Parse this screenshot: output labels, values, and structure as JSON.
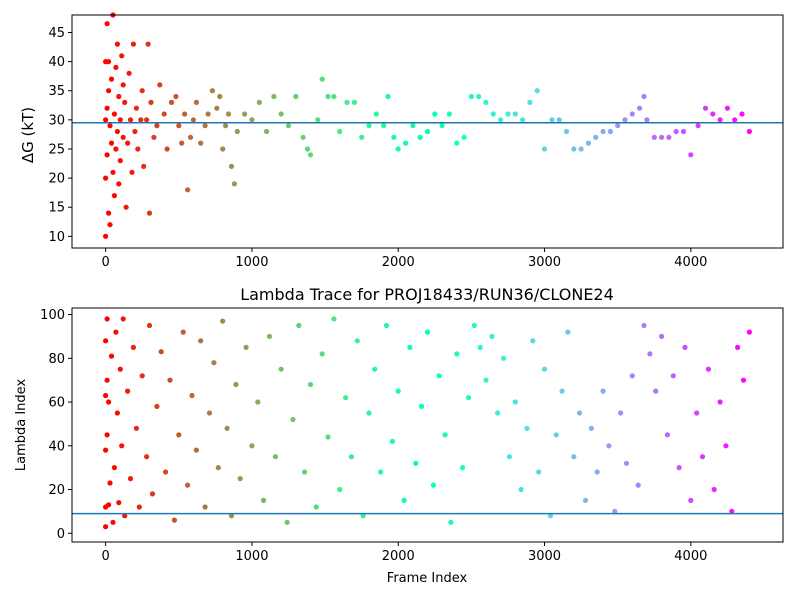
{
  "chart_data": [
    {
      "type": "scatter",
      "title": "",
      "xlabel": "",
      "ylabel": "ΔG (kT)",
      "xlim": [
        -230,
        4630
      ],
      "ylim": [
        8,
        48
      ],
      "xticks": [
        0,
        1000,
        2000,
        3000,
        4000
      ],
      "yticks": [
        10,
        15,
        20,
        25,
        30,
        35,
        40,
        45
      ],
      "hline": 29.5,
      "colormap": "rainbow",
      "color_by": "frame",
      "grid": false,
      "series": [
        {
          "values_description_points": [
            [
              0,
              10
            ],
            [
              0,
              20
            ],
            [
              0,
              30
            ],
            [
              0,
              40
            ],
            [
              10,
              46.5
            ],
            [
              10,
              32
            ],
            [
              10,
              24
            ],
            [
              20,
              14
            ],
            [
              20,
              35
            ],
            [
              20,
              40
            ],
            [
              30,
              12
            ],
            [
              30,
              29
            ],
            [
              40,
              26
            ],
            [
              40,
              37
            ],
            [
              50,
              48
            ],
            [
              50,
              21
            ],
            [
              60,
              31
            ],
            [
              60,
              17
            ],
            [
              70,
              39
            ],
            [
              70,
              25
            ],
            [
              80,
              43
            ],
            [
              80,
              28
            ],
            [
              90,
              19
            ],
            [
              90,
              34
            ],
            [
              100,
              30
            ],
            [
              100,
              23
            ],
            [
              110,
              41
            ],
            [
              120,
              27
            ],
            [
              120,
              36
            ],
            [
              130,
              33
            ],
            [
              140,
              15
            ],
            [
              150,
              26
            ],
            [
              160,
              38
            ],
            [
              170,
              30
            ],
            [
              180,
              21
            ],
            [
              190,
              43
            ],
            [
              200,
              28
            ],
            [
              210,
              32
            ],
            [
              220,
              25
            ],
            [
              240,
              30
            ],
            [
              250,
              35
            ],
            [
              260,
              22
            ],
            [
              280,
              30
            ],
            [
              290,
              43
            ],
            [
              300,
              14
            ],
            [
              310,
              33
            ],
            [
              330,
              27
            ],
            [
              350,
              29
            ],
            [
              370,
              36
            ],
            [
              400,
              31
            ],
            [
              420,
              25
            ],
            [
              450,
              33
            ],
            [
              480,
              34
            ],
            [
              500,
              29
            ],
            [
              520,
              26
            ],
            [
              540,
              31
            ],
            [
              560,
              18
            ],
            [
              580,
              27
            ],
            [
              600,
              30
            ],
            [
              620,
              33
            ],
            [
              650,
              26
            ],
            [
              680,
              29
            ],
            [
              700,
              31
            ],
            [
              730,
              35
            ],
            [
              760,
              32
            ],
            [
              780,
              34
            ],
            [
              800,
              25
            ],
            [
              820,
              29
            ],
            [
              840,
              31
            ],
            [
              860,
              22
            ],
            [
              880,
              19
            ],
            [
              900,
              28
            ],
            [
              950,
              31
            ],
            [
              1000,
              30
            ],
            [
              1050,
              33
            ],
            [
              1100,
              28
            ],
            [
              1150,
              34
            ],
            [
              1200,
              31
            ],
            [
              1250,
              29
            ],
            [
              1300,
              34
            ],
            [
              1350,
              27
            ],
            [
              1380,
              25
            ],
            [
              1400,
              24
            ],
            [
              1450,
              30
            ],
            [
              1480,
              37
            ],
            [
              1520,
              34
            ],
            [
              1560,
              34
            ],
            [
              1600,
              28
            ],
            [
              1650,
              33
            ],
            [
              1700,
              33
            ],
            [
              1750,
              27
            ],
            [
              1800,
              29
            ],
            [
              1850,
              31
            ],
            [
              1900,
              29
            ],
            [
              1930,
              34
            ],
            [
              1970,
              27
            ],
            [
              2000,
              25
            ],
            [
              2050,
              26
            ],
            [
              2100,
              29
            ],
            [
              2150,
              27
            ],
            [
              2200,
              28
            ],
            [
              2250,
              31
            ],
            [
              2300,
              29
            ],
            [
              2350,
              31
            ],
            [
              2400,
              26
            ],
            [
              2450,
              27
            ],
            [
              2500,
              34
            ],
            [
              2550,
              34
            ],
            [
              2600,
              33
            ],
            [
              2650,
              31
            ],
            [
              2700,
              30
            ],
            [
              2750,
              31
            ],
            [
              2800,
              31
            ],
            [
              2850,
              30
            ],
            [
              2900,
              33
            ],
            [
              2950,
              35
            ],
            [
              3000,
              25
            ],
            [
              3050,
              30
            ],
            [
              3100,
              30
            ],
            [
              3150,
              28
            ],
            [
              3200,
              25
            ],
            [
              3250,
              25
            ],
            [
              3300,
              26
            ],
            [
              3350,
              27
            ],
            [
              3400,
              28
            ],
            [
              3450,
              28
            ],
            [
              3500,
              29
            ],
            [
              3550,
              30
            ],
            [
              3600,
              31
            ],
            [
              3650,
              32
            ],
            [
              3680,
              34
            ],
            [
              3700,
              30
            ],
            [
              3750,
              27
            ],
            [
              3800,
              27
            ],
            [
              3850,
              27
            ],
            [
              3900,
              28
            ],
            [
              3950,
              28
            ],
            [
              4000,
              24
            ],
            [
              4050,
              29
            ],
            [
              4100,
              32
            ],
            [
              4150,
              31
            ],
            [
              4200,
              30
            ],
            [
              4250,
              32
            ],
            [
              4300,
              30
            ],
            [
              4350,
              31
            ],
            [
              4400,
              28
            ]
          ]
        }
      ]
    },
    {
      "type": "scatter",
      "title": "Lambda Trace for PROJ18433/RUN36/CLONE24",
      "xlabel": "Frame Index",
      "ylabel": "Lambda Index",
      "xlim": [
        -230,
        4630
      ],
      "ylim": [
        -4,
        103
      ],
      "xticks": [
        0,
        1000,
        2000,
        3000,
        4000
      ],
      "yticks": [
        0,
        20,
        40,
        60,
        80,
        100
      ],
      "hline": 9,
      "colormap": "rainbow",
      "color_by": "frame",
      "grid": false,
      "series": [
        {
          "values_description_points": [
            [
              0,
              3
            ],
            [
              0,
              12
            ],
            [
              0,
              38
            ],
            [
              0,
              63
            ],
            [
              0,
              88
            ],
            [
              10,
              98
            ],
            [
              10,
              45
            ],
            [
              10,
              70
            ],
            [
              20,
              13
            ],
            [
              20,
              60
            ],
            [
              30,
              23
            ],
            [
              40,
              81
            ],
            [
              50,
              5
            ],
            [
              60,
              30
            ],
            [
              70,
              92
            ],
            [
              80,
              55
            ],
            [
              90,
              14
            ],
            [
              100,
              75
            ],
            [
              110,
              40
            ],
            [
              120,
              98
            ],
            [
              130,
              8
            ],
            [
              150,
              65
            ],
            [
              170,
              25
            ],
            [
              190,
              85
            ],
            [
              210,
              48
            ],
            [
              230,
              12
            ],
            [
              250,
              72
            ],
            [
              280,
              35
            ],
            [
              300,
              95
            ],
            [
              320,
              18
            ],
            [
              350,
              58
            ],
            [
              380,
              83
            ],
            [
              410,
              28
            ],
            [
              440,
              70
            ],
            [
              470,
              6
            ],
            [
              500,
              45
            ],
            [
              530,
              92
            ],
            [
              560,
              22
            ],
            [
              590,
              63
            ],
            [
              620,
              38
            ],
            [
              650,
              88
            ],
            [
              680,
              12
            ],
            [
              710,
              55
            ],
            [
              740,
              78
            ],
            [
              770,
              30
            ],
            [
              800,
              97
            ],
            [
              830,
              48
            ],
            [
              860,
              8
            ],
            [
              890,
              68
            ],
            [
              920,
              25
            ],
            [
              960,
              85
            ],
            [
              1000,
              40
            ],
            [
              1040,
              60
            ],
            [
              1080,
              15
            ],
            [
              1120,
              90
            ],
            [
              1160,
              35
            ],
            [
              1200,
              75
            ],
            [
              1240,
              5
            ],
            [
              1280,
              52
            ],
            [
              1320,
              95
            ],
            [
              1360,
              28
            ],
            [
              1400,
              68
            ],
            [
              1440,
              12
            ],
            [
              1480,
              82
            ],
            [
              1520,
              44
            ],
            [
              1560,
              98
            ],
            [
              1600,
              20
            ],
            [
              1640,
              62
            ],
            [
              1680,
              35
            ],
            [
              1720,
              88
            ],
            [
              1760,
              8
            ],
            [
              1800,
              55
            ],
            [
              1840,
              75
            ],
            [
              1880,
              28
            ],
            [
              1920,
              95
            ],
            [
              1960,
              42
            ],
            [
              2000,
              65
            ],
            [
              2040,
              15
            ],
            [
              2080,
              85
            ],
            [
              2120,
              32
            ],
            [
              2160,
              58
            ],
            [
              2200,
              92
            ],
            [
              2240,
              22
            ],
            [
              2280,
              72
            ],
            [
              2320,
              45
            ],
            [
              2360,
              5
            ],
            [
              2400,
              82
            ],
            [
              2440,
              30
            ],
            [
              2480,
              62
            ],
            [
              2520,
              95
            ],
            [
              2560,
              85
            ],
            [
              2600,
              70
            ],
            [
              2640,
              90
            ],
            [
              2680,
              55
            ],
            [
              2720,
              80
            ],
            [
              2760,
              35
            ],
            [
              2800,
              60
            ],
            [
              2840,
              20
            ],
            [
              2880,
              48
            ],
            [
              2920,
              88
            ],
            [
              2960,
              28
            ],
            [
              3000,
              75
            ],
            [
              3040,
              8
            ],
            [
              3080,
              45
            ],
            [
              3120,
              65
            ],
            [
              3160,
              92
            ],
            [
              3200,
              35
            ],
            [
              3240,
              55
            ],
            [
              3280,
              15
            ],
            [
              3320,
              48
            ],
            [
              3360,
              28
            ],
            [
              3400,
              65
            ],
            [
              3440,
              40
            ],
            [
              3480,
              10
            ],
            [
              3520,
              55
            ],
            [
              3560,
              32
            ],
            [
              3600,
              72
            ],
            [
              3640,
              22
            ],
            [
              3680,
              95
            ],
            [
              3720,
              82
            ],
            [
              3760,
              65
            ],
            [
              3800,
              90
            ],
            [
              3840,
              45
            ],
            [
              3880,
              72
            ],
            [
              3920,
              30
            ],
            [
              3960,
              85
            ],
            [
              4000,
              15
            ],
            [
              4040,
              55
            ],
            [
              4080,
              35
            ],
            [
              4120,
              75
            ],
            [
              4160,
              20
            ],
            [
              4200,
              60
            ],
            [
              4240,
              40
            ],
            [
              4280,
              10
            ],
            [
              4320,
              85
            ],
            [
              4360,
              70
            ],
            [
              4400,
              92
            ]
          ]
        }
      ]
    }
  ]
}
